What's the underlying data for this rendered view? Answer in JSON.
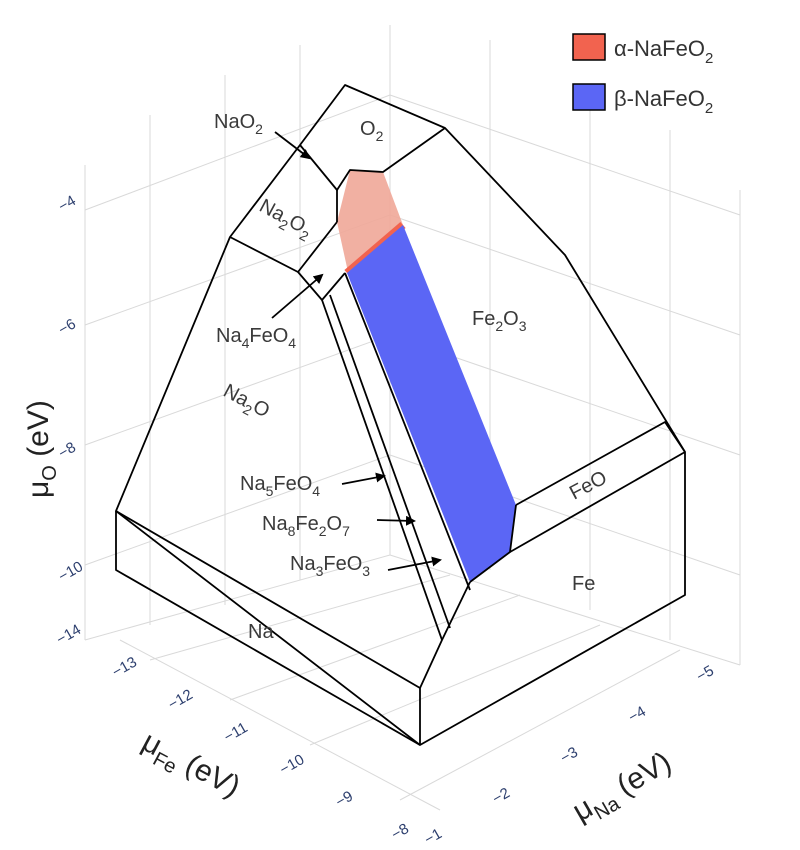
{
  "chart_data": {
    "type": "3d-phase-diagram",
    "title": "",
    "axes": {
      "z": {
        "label_main": "μ",
        "label_sub": "O",
        "label_unit": " (eV)",
        "ticks": [
          "-4",
          "-6",
          "-8",
          "-10"
        ]
      },
      "x": {
        "label_main": "μ",
        "label_sub": "Fe",
        "label_unit": " (eV)",
        "ticks": [
          "-14",
          "-13",
          "-12",
          "-11",
          "-10",
          "-9",
          "-8"
        ]
      },
      "y": {
        "label_main": "μ",
        "label_sub": "Na",
        "label_unit": " (eV)",
        "ticks": [
          "-1",
          "-2",
          "-3",
          "-4",
          "-5"
        ]
      }
    },
    "legend": {
      "placement": "top-right",
      "entries": [
        {
          "prefix": "α-NaFeO",
          "sub": "2",
          "color": "#f2634f"
        },
        {
          "prefix": "β-NaFeO",
          "sub": "2",
          "color": "#5b66f5"
        }
      ]
    },
    "regions": {
      "O2": {
        "main": "O",
        "sub": "2"
      },
      "Na2O2": {
        "parts": [
          "Na",
          "2",
          "O",
          "2"
        ]
      },
      "Na2O": {
        "parts": [
          "Na",
          "2",
          "O"
        ]
      },
      "Fe2O3": {
        "parts": [
          "Fe",
          "2",
          "O",
          "3"
        ]
      },
      "FeO": {
        "text": "FeO"
      },
      "Fe": {
        "text": "Fe"
      },
      "Na": {
        "text": "Na"
      }
    },
    "callouts": {
      "NaO2": {
        "main": "NaO",
        "sub": "2"
      },
      "Na4FeO4": {
        "parts": [
          "Na",
          "4",
          "FeO",
          "4"
        ]
      },
      "Na5FeO4": {
        "parts": [
          "Na",
          "5",
          "FeO",
          "4"
        ]
      },
      "Na8Fe2O7": {
        "parts": [
          "Na",
          "8",
          "Fe",
          "2",
          "O",
          "7"
        ]
      },
      "Na3FeO3": {
        "parts": [
          "Na",
          "3",
          "FeO",
          "3"
        ]
      }
    },
    "colors": {
      "alpha_fill": "#f0a798",
      "alpha_edge": "#f2634f",
      "beta_fill": "#5b66f5",
      "grid": "#d9d9d9",
      "tick_text": "#2d3f6e"
    }
  }
}
